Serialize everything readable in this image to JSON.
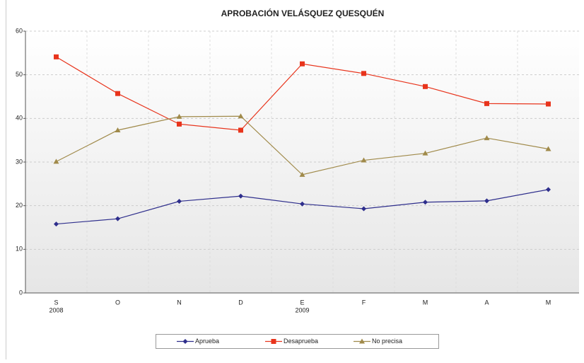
{
  "chart_data": {
    "type": "line",
    "title": "APROBACIÓN VELÁSQUEZ QUESQUÉN",
    "categories": [
      "S",
      "O",
      "N",
      "D",
      "E",
      "F",
      "M",
      "A",
      "M"
    ],
    "category_years": [
      "2008",
      null,
      null,
      null,
      "2009",
      null,
      null,
      null,
      null
    ],
    "series": [
      {
        "name": "Aprueba",
        "color": "#2e2e8c",
        "marker": "diamond",
        "values": [
          15.8,
          17,
          21,
          22.2,
          20.4,
          19.3,
          20.8,
          21.1,
          23.7
        ]
      },
      {
        "name": "Desaprueba",
        "color": "#e8341c",
        "marker": "square",
        "values": [
          54.1,
          45.7,
          38.7,
          37.3,
          52.5,
          50.3,
          47.3,
          43.4,
          43.3
        ]
      },
      {
        "name": "No precisa",
        "color": "#a08a4a",
        "marker": "triangle",
        "values": [
          30.1,
          37.3,
          40.4,
          40.5,
          27.1,
          30.4,
          32,
          35.5,
          33
        ]
      }
    ],
    "ylim": [
      0,
      60
    ],
    "yticks": [
      0,
      10,
      20,
      30,
      40,
      50,
      60
    ],
    "grid": true,
    "legend": "bottom"
  }
}
